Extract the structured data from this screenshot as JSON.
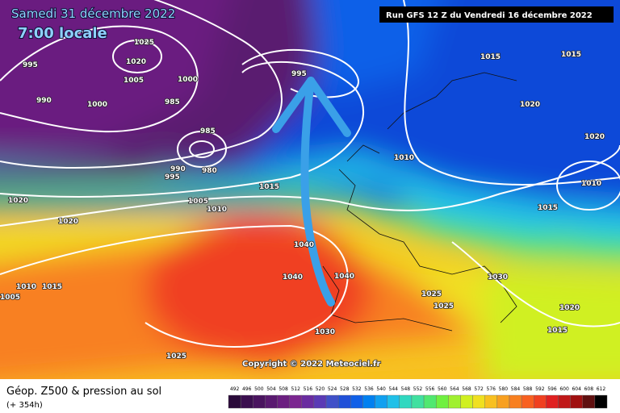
{
  "header": {
    "date": "Samedi 31 décembre 2022",
    "time": "7:00 locale",
    "run": "Run GFS 12 Z du Vendredi 16 décembre 2022"
  },
  "copyright": "Copyright © 2022 Meteociel.fr",
  "footer": {
    "title": "Géop. Z500 & pression au sol",
    "lead": "(+ 354h)"
  },
  "isobar_labels": [
    "1025",
    "1020",
    "995",
    "1005",
    "1000",
    "990",
    "1000",
    "985",
    "995",
    "985",
    "990",
    "980",
    "995",
    "1015",
    "1005",
    "1010",
    "1020",
    "1020",
    "1040",
    "1040",
    "1040",
    "1030",
    "1025",
    "1015",
    "1010",
    "1005",
    "1015",
    "1015",
    "1020",
    "1010",
    "1020",
    "1010",
    "1015",
    "1030",
    "1025",
    "1025",
    "1020",
    "1015"
  ],
  "scale": {
    "labels": [
      "492",
      "496",
      "500",
      "504",
      "508",
      "512",
      "516",
      "520",
      "524",
      "528",
      "532",
      "536",
      "540",
      "544",
      "548",
      "552",
      "556",
      "560",
      "564",
      "568",
      "572",
      "576",
      "580",
      "584",
      "588",
      "592",
      "596",
      "600",
      "604",
      "608",
      "612"
    ],
    "colors": [
      "#2a0a3a",
      "#3b0f4f",
      "#4a145f",
      "#5a1a70",
      "#6b1f80",
      "#7b2690",
      "#6a2ca0",
      "#5a3ab5",
      "#4050c8",
      "#2050d8",
      "#1060e8",
      "#0080f0",
      "#10a0f0",
      "#20c0e8",
      "#30d8c0",
      "#40e0a0",
      "#50e870",
      "#70f040",
      "#a0f030",
      "#d0f020",
      "#f0e020",
      "#f8c020",
      "#f8a020",
      "#f88020",
      "#f86020",
      "#f04020",
      "#e02020",
      "#c01818",
      "#a01010",
      "#601010",
      "#000000"
    ]
  }
}
